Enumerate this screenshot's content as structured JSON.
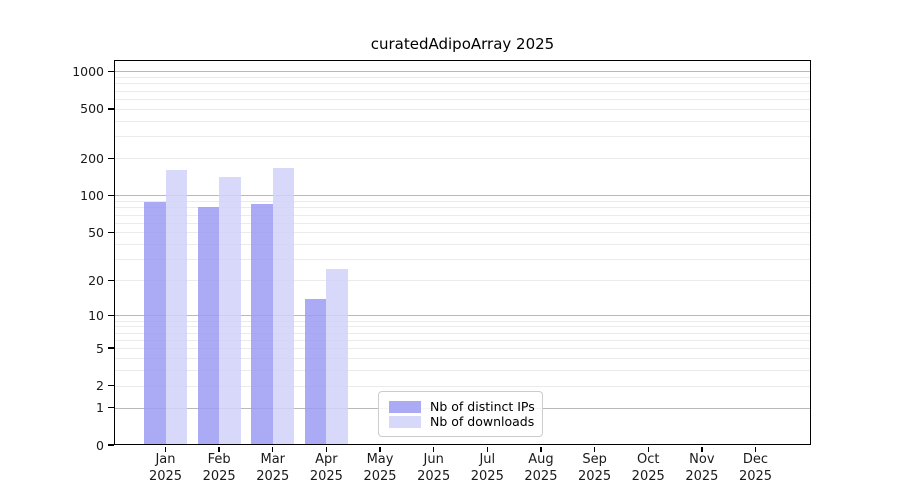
{
  "chart_data": {
    "type": "bar",
    "title": "curatedAdipoArray 2025",
    "categories": [
      {
        "month": "Jan",
        "year": "2025"
      },
      {
        "month": "Feb",
        "year": "2025"
      },
      {
        "month": "Mar",
        "year": "2025"
      },
      {
        "month": "Apr",
        "year": "2025"
      },
      {
        "month": "May",
        "year": "2025"
      },
      {
        "month": "Jun",
        "year": "2025"
      },
      {
        "month": "Jul",
        "year": "2025"
      },
      {
        "month": "Aug",
        "year": "2025"
      },
      {
        "month": "Sep",
        "year": "2025"
      },
      {
        "month": "Oct",
        "year": "2025"
      },
      {
        "month": "Nov",
        "year": "2025"
      },
      {
        "month": "Dec",
        "year": "2025"
      }
    ],
    "series": [
      {
        "name": "Nb of distinct IPs",
        "color": "#aaaaf5",
        "values": [
          89,
          81,
          86,
          14,
          0,
          0,
          0,
          0,
          0,
          0,
          0,
          0
        ]
      },
      {
        "name": "Nb of downloads",
        "color": "#d8d8fa",
        "values": [
          160,
          140,
          168,
          25,
          0,
          0,
          0,
          0,
          0,
          0,
          0,
          0
        ]
      }
    ],
    "y_ticks": [
      0,
      1,
      2,
      5,
      10,
      20,
      50,
      100,
      200,
      500,
      1000
    ],
    "y_scale": "log10(1+x)",
    "ylim": [
      0,
      1000
    ],
    "xlabel": "",
    "ylabel": "",
    "grid": "horizontal, minor log gridlines",
    "legend_position": "inside lower-center-left"
  }
}
